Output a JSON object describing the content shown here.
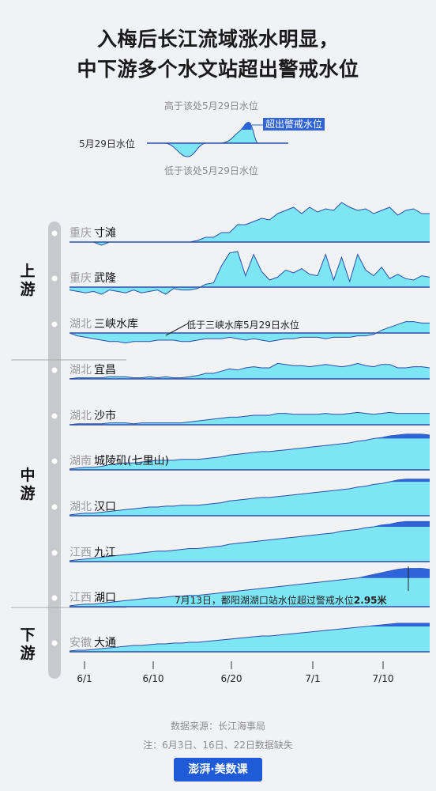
{
  "title": [
    "入梅后长江流域涨水明显，",
    "中下游多个水文站超出警戒水位"
  ],
  "legend": {
    "above": "高于该处5月29日水位",
    "below": "低于该处5月29日水位",
    "baseline": "5月29日水位",
    "exceed": "超出警戒水位"
  },
  "regions": [
    "上游",
    "中游",
    "下游"
  ],
  "annotations": {
    "three_gorges": "低于三峡水库5月29日水位",
    "hukou_prefix": "7月13日，鄱阳湖湖口站水位超过警戒水位",
    "hukou_value": "2.95米"
  },
  "source": "数据来源：长江海事局",
  "note": "注：6月3日、16日、22日数据缺失",
  "brand": "澎湃·美数课",
  "colors": {
    "fill": "#7ee5f5",
    "line": "#2a4fa8",
    "exceed": "#2f63d8",
    "baseline": "#2a4fa8"
  },
  "chart_data": {
    "type": "area",
    "x_ticks": [
      "6/1",
      "6/10",
      "6/20",
      "7/1",
      "7/10"
    ],
    "series_unit": "relative to 5/29 water level",
    "stations": [
      {
        "prov": "重庆",
        "name": "寸滩",
        "region": "上游",
        "values": [
          0,
          0,
          0,
          0,
          -0.2,
          0,
          0,
          0,
          0,
          0,
          0,
          0,
          0,
          0,
          0,
          0,
          0.1,
          0.3,
          0.3,
          0.6,
          0.6,
          1.1,
          1.1,
          1.3,
          1.5,
          1.4,
          1.8,
          2.0,
          2.2,
          1.8,
          2.2,
          1.9,
          2.1,
          2.0,
          2.5,
          2.2,
          2.0,
          2.1,
          1.8,
          2.0,
          2.2,
          1.7,
          2.0,
          2.1,
          1.8,
          1.8
        ]
      },
      {
        "prov": "重庆",
        "name": "武隆",
        "region": "上游",
        "values": [
          -0.2,
          -0.3,
          -0.4,
          -0.3,
          -0.5,
          -0.2,
          -0.3,
          -0.4,
          -0.2,
          -0.4,
          -0.3,
          -0.2,
          -0.5,
          -0.1,
          -0.2,
          -0.2,
          -0.1,
          0.2,
          0.3,
          1.5,
          2.4,
          2.5,
          0.8,
          2.3,
          1.1,
          0.5,
          0.7,
          1.2,
          1.0,
          1.3,
          0.9,
          0.8,
          2.3,
          0.5,
          2.1,
          0.4,
          2.3,
          1.2,
          0.8,
          1.4,
          0.6,
          0.9,
          0.6,
          0.5,
          0.8,
          0.7
        ]
      },
      {
        "prov": "湖北",
        "name": "三峡水库",
        "region": "上游",
        "values": [
          0,
          -0.2,
          -0.3,
          -0.4,
          -0.5,
          -0.6,
          -0.6,
          -0.7,
          -0.6,
          -0.6,
          -0.6,
          -0.5,
          -0.5,
          -0.5,
          -0.6,
          -0.6,
          -0.5,
          -0.4,
          -0.4,
          -0.4,
          -0.3,
          -0.4,
          -0.5,
          -0.4,
          -0.5,
          -0.6,
          -0.5,
          -0.4,
          -0.4,
          -0.3,
          -0.3,
          -0.3,
          -0.4,
          -0.3,
          -0.3,
          -0.3,
          -0.2,
          -0.2,
          -0.1,
          0.2,
          0.4,
          0.6,
          0.8,
          0.8,
          0.7,
          0.7
        ]
      },
      {
        "prov": "湖北",
        "name": "宜昌",
        "region": "中游",
        "values": [
          0,
          0.1,
          0.1,
          0.1,
          0.1,
          0.2,
          0.2,
          0.2,
          0.1,
          0.1,
          0.2,
          0.1,
          0.2,
          0.1,
          0.1,
          0.2,
          0.3,
          0.5,
          0.5,
          0.7,
          0.9,
          0.8,
          1.0,
          1.1,
          1.0,
          1.0,
          1.4,
          1.3,
          1.2,
          1.2,
          1.1,
          1.2,
          1.3,
          1.2,
          1.1,
          1.2,
          1.4,
          1.2,
          1.1,
          1.3,
          1.3,
          1.0,
          1.0,
          1.1,
          1.1,
          1.0
        ]
      },
      {
        "prov": "湖北",
        "name": "沙市",
        "region": "中游",
        "values": [
          0,
          0.1,
          0.1,
          0.1,
          0.1,
          0.2,
          0.2,
          0.2,
          0.1,
          0.2,
          0.2,
          0.2,
          0.2,
          0.2,
          0.2,
          0.3,
          0.4,
          0.5,
          0.6,
          0.7,
          0.8,
          0.8,
          0.9,
          1.0,
          1.0,
          1.0,
          1.2,
          1.2,
          1.1,
          1.1,
          1.1,
          1.1,
          1.2,
          1.1,
          1.1,
          1.2,
          1.3,
          1.2,
          1.1,
          1.2,
          1.3,
          1.2,
          1.2,
          1.2,
          1.2,
          1.2
        ]
      },
      {
        "prov": "湖南",
        "name": "城陵矶(七里山)",
        "region": "中游",
        "values": [
          0.1,
          0.2,
          0.3,
          0.3,
          0.4,
          0.6,
          0.7,
          0.8,
          0.8,
          0.9,
          1.0,
          1.1,
          1.1,
          1.1,
          1.2,
          1.2,
          1.2,
          1.3,
          1.4,
          1.5,
          1.7,
          1.8,
          1.9,
          2.0,
          2.1,
          2.1,
          2.2,
          2.3,
          2.4,
          2.5,
          2.6,
          2.7,
          2.8,
          2.9,
          3.0,
          3.1,
          3.3,
          3.4,
          3.6,
          3.7,
          3.9,
          4.0,
          4.1,
          4.1,
          4.1,
          4.0
        ],
        "exceed_from_index": 38
      },
      {
        "prov": "湖北",
        "name": "汉口",
        "region": "中游",
        "values": [
          0.1,
          0.2,
          0.3,
          0.3,
          0.4,
          0.5,
          0.6,
          0.7,
          0.8,
          0.9,
          1.0,
          1.0,
          1.1,
          1.1,
          1.2,
          1.2,
          1.2,
          1.3,
          1.4,
          1.5,
          1.7,
          1.8,
          1.9,
          2.0,
          2.1,
          2.1,
          2.2,
          2.3,
          2.4,
          2.5,
          2.6,
          2.7,
          2.8,
          2.9,
          3.0,
          3.1,
          3.3,
          3.4,
          3.6,
          3.7,
          3.9,
          4.1,
          4.2,
          4.2,
          4.2,
          4.2
        ],
        "exceed_from_index": 40
      },
      {
        "prov": "江西",
        "name": "九江",
        "region": "中游",
        "values": [
          0.1,
          0.2,
          0.3,
          0.4,
          0.5,
          0.6,
          0.7,
          0.8,
          0.9,
          1.0,
          1.1,
          1.2,
          1.2,
          1.3,
          1.4,
          1.5,
          1.5,
          1.6,
          1.7,
          1.8,
          2.0,
          2.1,
          2.2,
          2.3,
          2.4,
          2.5,
          2.6,
          2.7,
          2.8,
          2.9,
          3.0,
          3.1,
          3.2,
          3.3,
          3.5,
          3.6,
          3.7,
          3.9,
          4.0,
          4.2,
          4.3,
          4.5,
          4.6,
          4.6,
          4.6,
          4.6
        ],
        "exceed_from_index": 38
      },
      {
        "prov": "江西",
        "name": "湖口",
        "region": "中游",
        "values": [
          0.1,
          0.2,
          0.3,
          0.3,
          0.4,
          0.5,
          0.6,
          0.7,
          0.8,
          0.9,
          1.0,
          1.0,
          1.1,
          1.2,
          1.2,
          1.3,
          1.3,
          1.4,
          1.5,
          1.6,
          1.7,
          1.8,
          1.9,
          2.0,
          2.1,
          2.2,
          2.3,
          2.4,
          2.5,
          2.6,
          2.7,
          2.8,
          2.9,
          3.0,
          3.1,
          3.2,
          3.3,
          3.5,
          3.7,
          3.9,
          4.1,
          4.3,
          4.4,
          4.4,
          4.4,
          4.3
        ],
        "exceed_from_index": 36
      },
      {
        "prov": "安徽",
        "name": "大通",
        "region": "下游",
        "values": [
          0.1,
          0.2,
          0.2,
          0.3,
          0.4,
          0.5,
          0.6,
          0.7,
          0.8,
          0.8,
          0.9,
          1.0,
          1.0,
          1.1,
          1.1,
          1.2,
          1.2,
          1.3,
          1.4,
          1.5,
          1.6,
          1.7,
          1.8,
          1.9,
          2.0,
          2.0,
          2.1,
          2.2,
          2.3,
          2.4,
          2.5,
          2.6,
          2.7,
          2.8,
          2.9,
          3.0,
          3.1,
          3.2,
          3.3,
          3.4,
          3.5,
          3.6,
          3.6,
          3.6,
          3.6,
          3.6
        ],
        "exceed_from_index": 37
      }
    ]
  }
}
